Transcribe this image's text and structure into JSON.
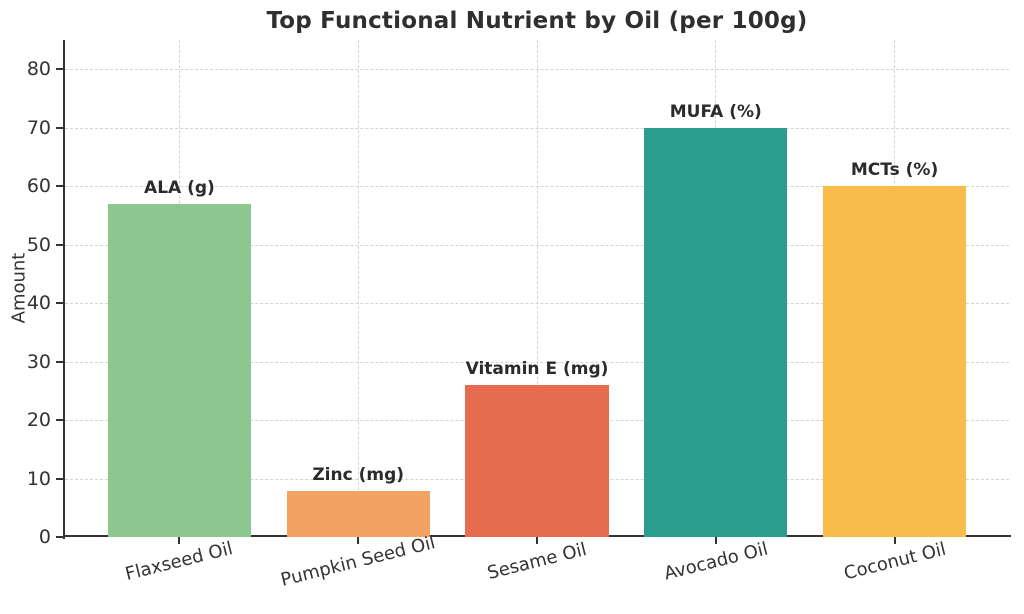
{
  "chart_data": {
    "type": "bar",
    "title": "Top Functional Nutrient by Oil (per 100g)",
    "xlabel": "",
    "ylabel": "Amount",
    "ylim": [
      0,
      85
    ],
    "yticks": [
      0,
      10,
      20,
      30,
      40,
      50,
      60,
      70,
      80
    ],
    "grid": true,
    "legend": "none",
    "categories": [
      "Flaxseed Oil",
      "Pumpkin Seed Oil",
      "Sesame Oil",
      "Avocado Oil",
      "Coconut Oil"
    ],
    "values": [
      57,
      7.8,
      26,
      70,
      60
    ],
    "bar_labels": [
      "ALA (g)",
      "Zinc (mg)",
      "Vitamin E (mg)",
      "MUFA (%)",
      "MCTs (%)"
    ],
    "bar_colors": [
      "#8DC790",
      "#F4A261",
      "#E56C4F",
      "#2A9D8F",
      "#F8BC4A"
    ],
    "colors": {
      "axis": "#333333",
      "grid": "#d4d4d4",
      "title_text": "#2f2f2f",
      "tick_text": "#333333"
    }
  }
}
